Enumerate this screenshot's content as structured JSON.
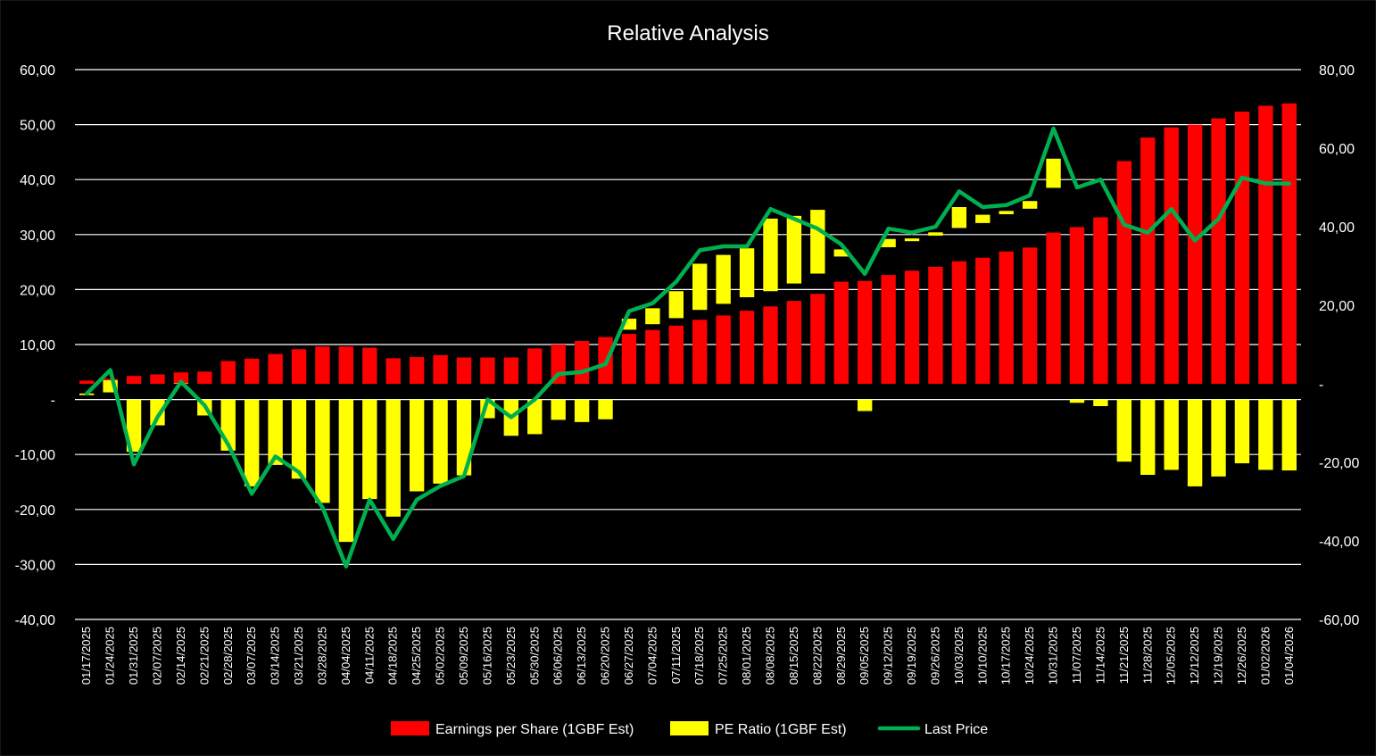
{
  "chart_data": {
    "type": "bar",
    "title": "Relative Analysis",
    "bar_mode": "stacked",
    "categories": [
      "01/17/2025",
      "01/24/2025",
      "01/31/2025",
      "02/07/2025",
      "02/14/2025",
      "02/21/2025",
      "02/28/2025",
      "03/07/2025",
      "03/14/2025",
      "03/21/2025",
      "03/28/2025",
      "04/04/2025",
      "04/11/2025",
      "04/18/2025",
      "04/25/2025",
      "05/02/2025",
      "05/09/2025",
      "05/16/2025",
      "05/23/2025",
      "05/30/2025",
      "06/06/2025",
      "06/13/2025",
      "06/20/2025",
      "06/27/2025",
      "07/04/2025",
      "07/11/2025",
      "07/18/2025",
      "07/25/2025",
      "08/01/2025",
      "08/08/2025",
      "08/15/2025",
      "08/22/2025",
      "08/29/2025",
      "09/05/2025",
      "09/12/2025",
      "09/19/2025",
      "09/26/2025",
      "10/03/2025",
      "10/10/2025",
      "10/17/2025",
      "10/24/2025",
      "10/31/2025",
      "11/07/2025",
      "11/14/2025",
      "11/21/2025",
      "11/28/2025",
      "12/05/2025",
      "12/12/2025",
      "12/19/2025",
      "12/26/2025",
      "01/02/2026",
      "01/04/2026"
    ],
    "left_axis": {
      "ylim": [
        -40,
        60
      ],
      "ticks": [
        -40,
        -30,
        -20,
        -10,
        0,
        10,
        20,
        30,
        40,
        50,
        60
      ],
      "tick_labels": [
        "-40,00",
        "-30,00",
        "-20,00",
        "-10,00",
        "-",
        "10,00",
        "20,00",
        "30,00",
        "40,00",
        "50,00",
        "60,00"
      ]
    },
    "right_axis": {
      "ylim": [
        -60,
        80
      ],
      "ticks": [
        -60,
        -40,
        -20,
        0,
        20,
        40,
        60,
        80
      ],
      "tick_labels": [
        "-60,00",
        "-40,00",
        "-20,00",
        "-",
        "20,00",
        "40,00",
        "60,00",
        "80,00"
      ]
    },
    "series": [
      {
        "name": "Earnings per Share (1GBF Est)",
        "kind": "bar",
        "axis": "right",
        "color": "#ff0000",
        "values": [
          0.8,
          1.3,
          2.0,
          2.4,
          2.9,
          3.1,
          5.8,
          6.4,
          7.6,
          8.8,
          9.5,
          9.5,
          9.2,
          6.5,
          6.8,
          7.3,
          6.7,
          6.7,
          6.7,
          9.0,
          10.0,
          10.9,
          11.9,
          12.7,
          13.7,
          14.8,
          16.3,
          17.4,
          18.6,
          19.7,
          21.1,
          22.9,
          26.0,
          26.2,
          27.7,
          28.8,
          29.8,
          31.2,
          32.1,
          33.7,
          34.7,
          38.5,
          39.9,
          42.4,
          56.7,
          62.7,
          65.3,
          66.0,
          67.6,
          69.3,
          70.8,
          71.4
        ]
      },
      {
        "name": "PE Ratio (1GBF Est)",
        "kind": "bar",
        "axis": "left",
        "color": "#ffff00",
        "values": [
          0.3,
          2.2,
          -9.5,
          -4.7,
          0.1,
          -2.9,
          -9.3,
          -15.8,
          -11.9,
          -14.4,
          -18.8,
          -25.9,
          -18.1,
          -21.3,
          -16.7,
          -15.3,
          -13.8,
          -3.4,
          -6.6,
          -6.3,
          -3.7,
          -4.1,
          -3.6,
          2.0,
          2.9,
          4.9,
          8.4,
          8.9,
          8.9,
          13.2,
          12.3,
          11.6,
          1.3,
          -2.1,
          1.5,
          0.5,
          0.6,
          3.8,
          1.5,
          0.6,
          1.4,
          5.3,
          -0.6,
          -1.2,
          -11.3,
          -13.7,
          -12.8,
          -15.8,
          -14.0,
          -11.6,
          -12.8,
          -12.9
        ]
      },
      {
        "name": "Last Price",
        "kind": "line",
        "axis": "right",
        "color": "#00b050",
        "values": [
          -2.5,
          3.5,
          -20.5,
          -8.5,
          0.5,
          -5.5,
          -15.5,
          -28.0,
          -18.5,
          -22.5,
          -31.5,
          -46.5,
          -29.5,
          -39.5,
          -29.5,
          -26.0,
          -23.5,
          -4.0,
          -8.5,
          -4.0,
          2.5,
          3.0,
          5.0,
          18.5,
          20.5,
          26.0,
          34.0,
          35.0,
          35.0,
          44.5,
          42.0,
          39.5,
          35.5,
          28.0,
          39.5,
          38.5,
          40.0,
          49.0,
          45.0,
          45.5,
          48.0,
          65.0,
          50.0,
          52.0,
          40.5,
          38.5,
          44.5,
          36.5,
          42.0,
          52.5,
          51.0,
          51.0
        ]
      }
    ],
    "grid": true,
    "legend_position": "bottom"
  },
  "legend": {
    "items": [
      {
        "label": "Earnings per Share (1GBF Est)",
        "color": "#ff0000",
        "kind": "bar"
      },
      {
        "label": "PE Ratio (1GBF Est)",
        "color": "#ffff00",
        "kind": "bar"
      },
      {
        "label": "Last Price",
        "color": "#00b050",
        "kind": "line"
      }
    ]
  },
  "colors": {
    "background": "#000000",
    "gridline": "#ffffff",
    "text": "#ffffff"
  }
}
